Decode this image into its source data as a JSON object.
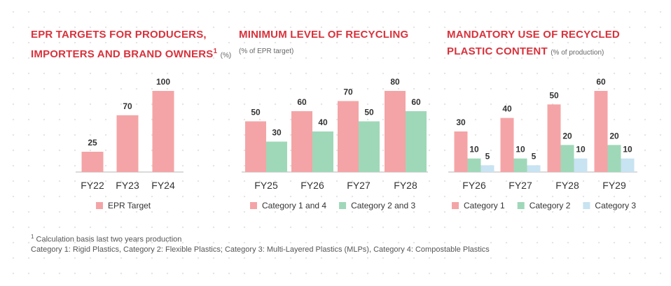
{
  "colors": {
    "pink": "#f4a4a6",
    "green": "#9fd8b8",
    "blue": "#c8e3f2",
    "title": "#d8323c",
    "axis": "#cfcfcf",
    "text": "#333333"
  },
  "chart_data": [
    {
      "type": "bar",
      "title_line1": "EPR TARGETS FOR PRODUCERS,",
      "title_line2": "IMPORTERS AND BRAND OWNERS",
      "title_sup": "1",
      "unit": "(%)",
      "categories": [
        "FY22",
        "FY23",
        "FY24"
      ],
      "series": [
        {
          "name": "EPR Target",
          "color": "pink",
          "values": [
            25,
            70,
            100
          ]
        }
      ],
      "ylim": [
        0,
        100
      ]
    },
    {
      "type": "bar",
      "title_line1": "MINIMUM LEVEL OF RECYCLING",
      "subtitle": "(% of EPR target)",
      "categories": [
        "FY25",
        "FY26",
        "FY27",
        "FY28"
      ],
      "series": [
        {
          "name": "Category 1 and 4",
          "color": "pink",
          "values": [
            50,
            60,
            70,
            80
          ]
        },
        {
          "name": "Category 2 and 3",
          "color": "green",
          "values": [
            30,
            40,
            50,
            60
          ]
        }
      ],
      "ylim": [
        0,
        80
      ]
    },
    {
      "type": "bar",
      "title_line1": "MANDATORY USE OF RECYCLED",
      "title_line2": "PLASTIC CONTENT",
      "unit": "(% of production)",
      "categories": [
        "FY26",
        "FY27",
        "FY28",
        "FY29"
      ],
      "series": [
        {
          "name": "Category 1",
          "color": "pink",
          "values": [
            30,
            40,
            50,
            60
          ]
        },
        {
          "name": "Category 2",
          "color": "green",
          "values": [
            10,
            10,
            20,
            20
          ]
        },
        {
          "name": "Category 3",
          "color": "blue",
          "values": [
            5,
            5,
            10,
            10
          ]
        }
      ],
      "ylim": [
        0,
        60
      ]
    }
  ],
  "footnotes": {
    "sup": "1",
    "line1": "Calculation basis last two years production",
    "line2": "Category 1: Rigid Plastics, Category 2: Flexible Plastics; Category 3: Multi-Layered Plastics (MLPs), Category 4: Compostable Plastics"
  }
}
